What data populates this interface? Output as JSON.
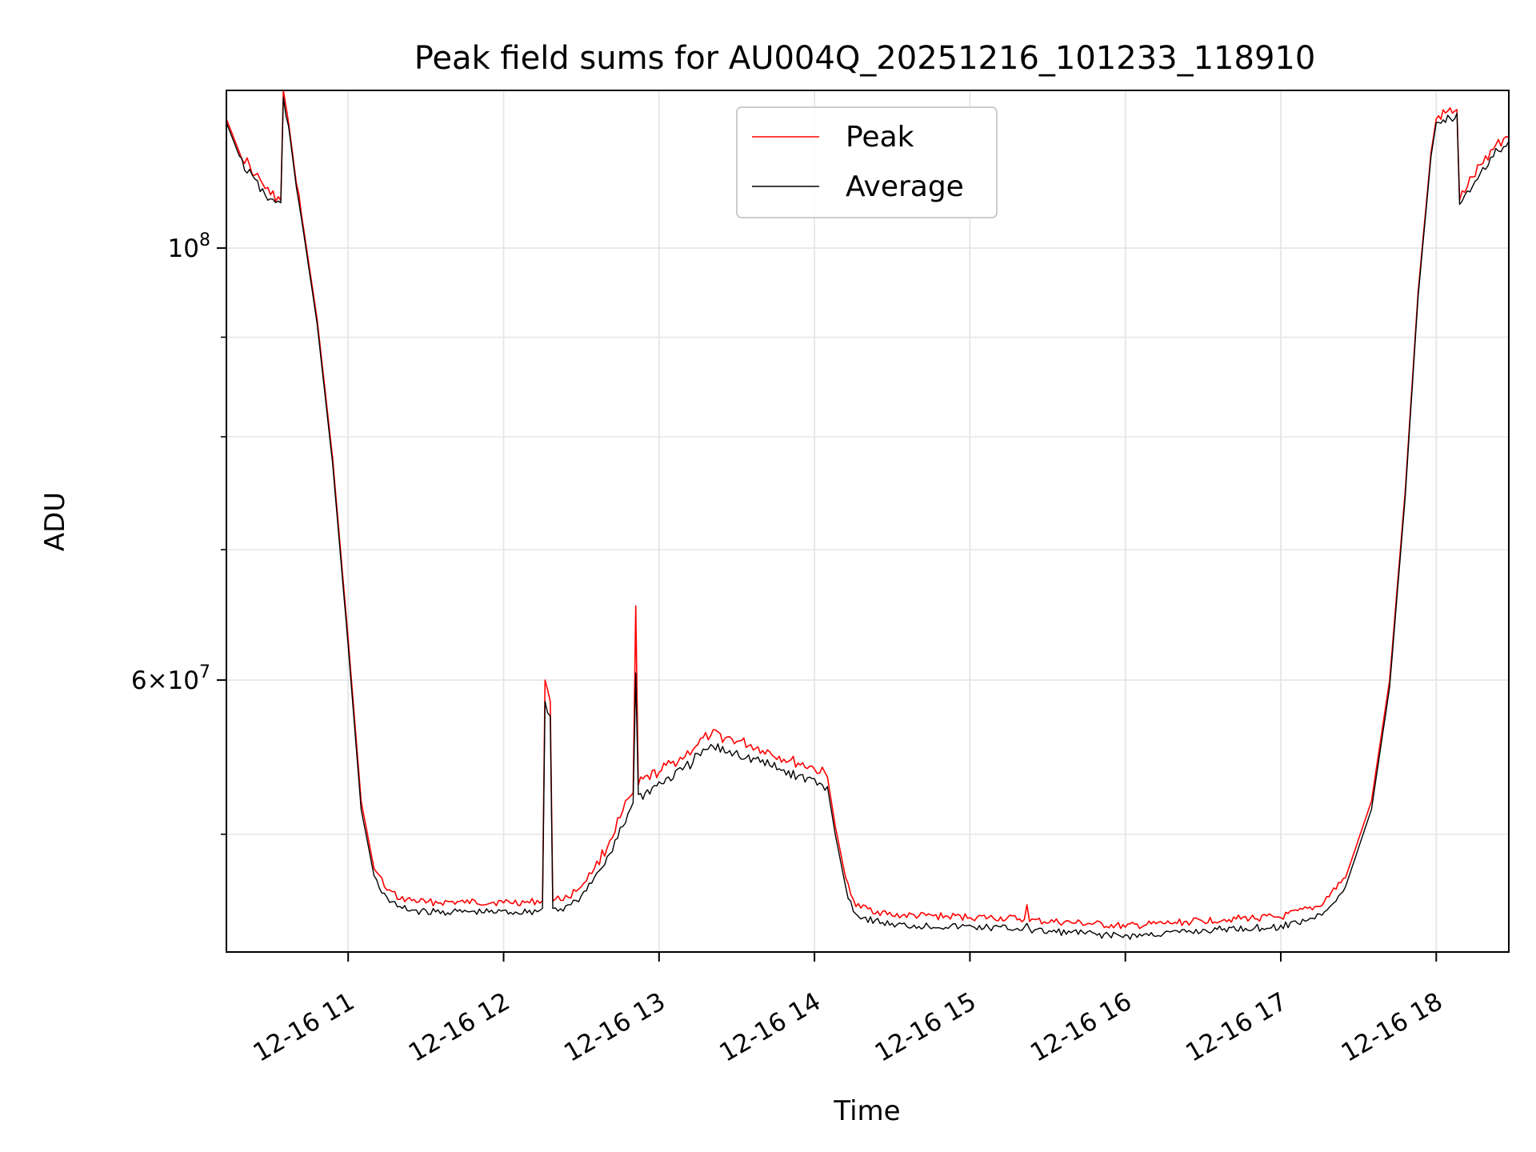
{
  "chart_data": {
    "type": "line",
    "title": "Peak field sums for AU004Q_20251216_101233_118910",
    "xlabel": "Time",
    "ylabel": "ADU",
    "x_range": [
      "2025-12-16 10:13",
      "2025-12-16 18:28"
    ],
    "ylim": [
      43500000,
      120500000
    ],
    "y_scale": "log",
    "grid": true,
    "legend_position": "upper center",
    "x_ticks": [
      "2025-12-16 11:00",
      "2025-12-16 12:00",
      "2025-12-16 13:00",
      "2025-12-16 14:00",
      "2025-12-16 15:00",
      "2025-12-16 16:00",
      "2025-12-16 17:00",
      "2025-12-16 18:00"
    ],
    "x_tick_labels": [
      "12-16 11",
      "12-16 12",
      "12-16 13",
      "12-16 14",
      "12-16 15",
      "12-16 16",
      "12-16 17",
      "12-16 18"
    ],
    "y_major_ticks": [
      {
        "value": 100000000,
        "base": "10",
        "exp": "8"
      },
      {
        "value": 60000000,
        "mant": "6",
        "base": "10",
        "exp": "7"
      }
    ],
    "y_minor_ticks": [
      50000000,
      70000000,
      80000000,
      90000000
    ],
    "series": [
      {
        "name": "Peak",
        "color": "#ff0000",
        "points": [
          [
            "2025-12-16 10:13",
            116500000
          ],
          [
            "2025-12-16 10:18",
            112000000
          ],
          [
            "2025-12-16 10:24",
            109000000
          ],
          [
            "2025-12-16 10:30",
            106500000
          ],
          [
            "2025-12-16 10:34",
            105800000
          ],
          [
            "2025-12-16 10:35",
            120500000
          ],
          [
            "2025-12-16 10:37",
            116000000
          ],
          [
            "2025-12-16 10:40",
            108000000
          ],
          [
            "2025-12-16 10:42",
            104000000
          ],
          [
            "2025-12-16 10:48",
            92000000
          ],
          [
            "2025-12-16 10:54",
            78000000
          ],
          [
            "2025-12-16 11:00",
            63000000
          ],
          [
            "2025-12-16 11:05",
            52000000
          ],
          [
            "2025-12-16 11:10",
            48000000
          ],
          [
            "2025-12-16 11:15",
            46800000
          ],
          [
            "2025-12-16 11:20",
            46300000
          ],
          [
            "2025-12-16 11:30",
            46100000
          ],
          [
            "2025-12-16 11:45",
            46100000
          ],
          [
            "2025-12-16 12:00",
            46100000
          ],
          [
            "2025-12-16 12:10",
            46100000
          ],
          [
            "2025-12-16 12:15",
            46200000
          ],
          [
            "2025-12-16 12:16",
            60000000
          ],
          [
            "2025-12-16 12:18",
            58500000
          ],
          [
            "2025-12-16 12:19",
            46200000
          ],
          [
            "2025-12-16 12:25",
            46400000
          ],
          [
            "2025-12-16 12:30",
            47000000
          ],
          [
            "2025-12-16 12:35",
            48000000
          ],
          [
            "2025-12-16 12:40",
            49200000
          ],
          [
            "2025-12-16 12:45",
            51000000
          ],
          [
            "2025-12-16 12:50",
            52500000
          ],
          [
            "2025-12-16 12:51",
            65500000
          ],
          [
            "2025-12-16 12:52",
            53000000
          ],
          [
            "2025-12-16 13:00",
            53800000
          ],
          [
            "2025-12-16 13:10",
            54800000
          ],
          [
            "2025-12-16 13:15",
            55600000
          ],
          [
            "2025-12-16 13:20",
            56200000
          ],
          [
            "2025-12-16 13:30",
            55800000
          ],
          [
            "2025-12-16 13:40",
            55200000
          ],
          [
            "2025-12-16 13:50",
            54500000
          ],
          [
            "2025-12-16 14:00",
            54000000
          ],
          [
            "2025-12-16 14:05",
            53500000
          ],
          [
            "2025-12-16 14:08",
            50500000
          ],
          [
            "2025-12-16 14:12",
            47500000
          ],
          [
            "2025-12-16 14:16",
            45900000
          ],
          [
            "2025-12-16 14:30",
            45400000
          ],
          [
            "2025-12-16 15:00",
            45300000
          ],
          [
            "2025-12-16 15:21",
            45200000
          ],
          [
            "2025-12-16 15:22",
            46000000
          ],
          [
            "2025-12-16 15:23",
            45100000
          ],
          [
            "2025-12-16 15:40",
            45000000
          ],
          [
            "2025-12-16 16:00",
            44800000
          ],
          [
            "2025-12-16 16:20",
            45000000
          ],
          [
            "2025-12-16 16:40",
            45200000
          ],
          [
            "2025-12-16 17:00",
            45300000
          ],
          [
            "2025-12-16 17:15",
            45900000
          ],
          [
            "2025-12-16 17:25",
            47500000
          ],
          [
            "2025-12-16 17:35",
            52000000
          ],
          [
            "2025-12-16 17:42",
            60000000
          ],
          [
            "2025-12-16 17:48",
            75000000
          ],
          [
            "2025-12-16 17:53",
            95000000
          ],
          [
            "2025-12-16 17:58",
            112000000
          ],
          [
            "2025-12-16 18:00",
            116500000
          ],
          [
            "2025-12-16 18:08",
            117800000
          ],
          [
            "2025-12-16 18:09",
            105800000
          ],
          [
            "2025-12-16 18:12",
            107500000
          ],
          [
            "2025-12-16 18:18",
            110500000
          ],
          [
            "2025-12-16 18:23",
            113000000
          ],
          [
            "2025-12-16 18:28",
            114000000
          ]
        ]
      },
      {
        "name": "Average",
        "color": "#000000",
        "points": [
          [
            "2025-12-16 10:13",
            116000000
          ],
          [
            "2025-12-16 10:18",
            111500000
          ],
          [
            "2025-12-16 10:24",
            108500000
          ],
          [
            "2025-12-16 10:30",
            106000000
          ],
          [
            "2025-12-16 10:34",
            105500000
          ],
          [
            "2025-12-16 10:35",
            119500000
          ],
          [
            "2025-12-16 10:37",
            115500000
          ],
          [
            "2025-12-16 10:40",
            107500000
          ],
          [
            "2025-12-16 10:42",
            103500000
          ],
          [
            "2025-12-16 10:48",
            91500000
          ],
          [
            "2025-12-16 10:54",
            77500000
          ],
          [
            "2025-12-16 11:00",
            62500000
          ],
          [
            "2025-12-16 11:05",
            51500000
          ],
          [
            "2025-12-16 11:10",
            47600000
          ],
          [
            "2025-12-16 11:15",
            46400000
          ],
          [
            "2025-12-16 11:20",
            45900000
          ],
          [
            "2025-12-16 11:30",
            45700000
          ],
          [
            "2025-12-16 11:45",
            45700000
          ],
          [
            "2025-12-16 12:00",
            45700000
          ],
          [
            "2025-12-16 12:10",
            45700000
          ],
          [
            "2025-12-16 12:15",
            45800000
          ],
          [
            "2025-12-16 12:16",
            58500000
          ],
          [
            "2025-12-16 12:18",
            57500000
          ],
          [
            "2025-12-16 12:19",
            45800000
          ],
          [
            "2025-12-16 12:25",
            46000000
          ],
          [
            "2025-12-16 12:30",
            46500000
          ],
          [
            "2025-12-16 12:35",
            47500000
          ],
          [
            "2025-12-16 12:40",
            48700000
          ],
          [
            "2025-12-16 12:45",
            50400000
          ],
          [
            "2025-12-16 12:50",
            51900000
          ],
          [
            "2025-12-16 12:51",
            60500000
          ],
          [
            "2025-12-16 12:52",
            52400000
          ],
          [
            "2025-12-16 13:00",
            53200000
          ],
          [
            "2025-12-16 13:10",
            54200000
          ],
          [
            "2025-12-16 13:15",
            55000000
          ],
          [
            "2025-12-16 13:20",
            55600000
          ],
          [
            "2025-12-16 13:30",
            55200000
          ],
          [
            "2025-12-16 13:40",
            54600000
          ],
          [
            "2025-12-16 13:50",
            53900000
          ],
          [
            "2025-12-16 14:00",
            53400000
          ],
          [
            "2025-12-16 14:05",
            52900000
          ],
          [
            "2025-12-16 14:08",
            50000000
          ],
          [
            "2025-12-16 14:12",
            47000000
          ],
          [
            "2025-12-16 14:16",
            45500000
          ],
          [
            "2025-12-16 14:30",
            45000000
          ],
          [
            "2025-12-16 15:00",
            44900000
          ],
          [
            "2025-12-16 15:21",
            44800000
          ],
          [
            "2025-12-16 15:22",
            45000000
          ],
          [
            "2025-12-16 15:23",
            44700000
          ],
          [
            "2025-12-16 15:40",
            44600000
          ],
          [
            "2025-12-16 16:00",
            44400000
          ],
          [
            "2025-12-16 16:20",
            44600000
          ],
          [
            "2025-12-16 16:40",
            44800000
          ],
          [
            "2025-12-16 17:00",
            44900000
          ],
          [
            "2025-12-16 17:15",
            45500000
          ],
          [
            "2025-12-16 17:25",
            47000000
          ],
          [
            "2025-12-16 17:35",
            51500000
          ],
          [
            "2025-12-16 17:42",
            59500000
          ],
          [
            "2025-12-16 17:48",
            74500000
          ],
          [
            "2025-12-16 17:53",
            94500000
          ],
          [
            "2025-12-16 17:58",
            111500000
          ],
          [
            "2025-12-16 18:00",
            116000000
          ],
          [
            "2025-12-16 18:08",
            117300000
          ],
          [
            "2025-12-16 18:09",
            105300000
          ],
          [
            "2025-12-16 18:12",
            107000000
          ],
          [
            "2025-12-16 18:18",
            110000000
          ],
          [
            "2025-12-16 18:23",
            112500000
          ],
          [
            "2025-12-16 18:28",
            113500000
          ]
        ]
      }
    ]
  }
}
